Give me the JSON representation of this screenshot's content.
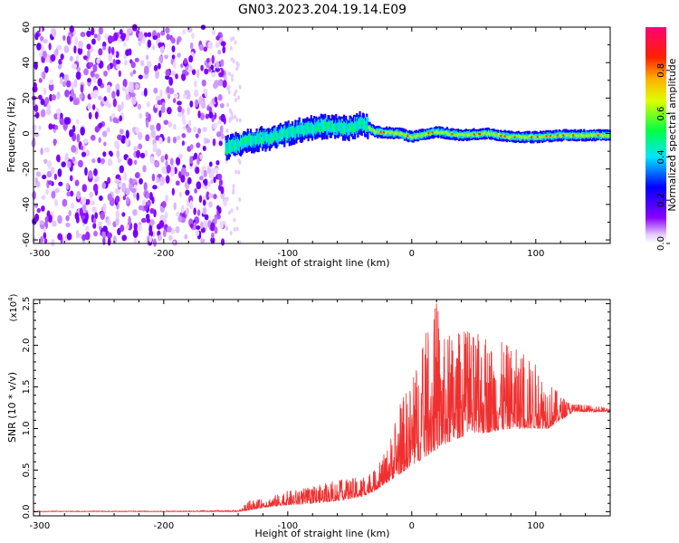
{
  "figure_title": "GN03.2023.204.19.14.E09",
  "chart_data": [
    {
      "type": "heatmap",
      "title": "GN03.2023.204.19.14.E09",
      "xlabel": "Height of straight line (km)",
      "ylabel": "Frequency (Hz)",
      "xlim": [
        -305,
        160
      ],
      "ylim": [
        -62,
        60
      ],
      "x_ticks": [
        -300,
        -200,
        -100,
        0,
        100
      ],
      "x_tick_labels": [
        "-300",
        "-200",
        "-100",
        "0",
        "100"
      ],
      "y_ticks": [
        -60,
        -40,
        -20,
        0,
        20,
        40,
        60
      ],
      "y_tick_labels": [
        "-60",
        "-40",
        "-20",
        "0",
        "20",
        "40",
        "60"
      ],
      "colorbar": {
        "label": "Normalized spectral amplitude",
        "range": [
          0,
          1
        ],
        "ticks": [
          0.0,
          0.2,
          0.4,
          0.6,
          0.8
        ],
        "tick_labels": [
          "0.0",
          "0.2",
          "0.4",
          "0.6",
          "0.8"
        ],
        "colormap": "rainbow (violet-blue-cyan-green-yellow-orange-red-magenta)"
      },
      "features": {
        "broadband_noise_region_km": [
          -305,
          -150
        ],
        "signal_band_center_hz": 0,
        "signal_band_peak_amplitude": 0.9,
        "signal_band_trace": [
          {
            "x": -150,
            "y": -8
          },
          {
            "x": -130,
            "y": -4
          },
          {
            "x": -110,
            "y": -2
          },
          {
            "x": -90,
            "y": 2
          },
          {
            "x": -70,
            "y": 4
          },
          {
            "x": -50,
            "y": 3
          },
          {
            "x": -40,
            "y": 6
          },
          {
            "x": -30,
            "y": 1
          },
          {
            "x": -10,
            "y": 0
          },
          {
            "x": 0,
            "y": -2
          },
          {
            "x": 20,
            "y": 1
          },
          {
            "x": 40,
            "y": -1
          },
          {
            "x": 60,
            "y": 0
          },
          {
            "x": 80,
            "y": -2
          },
          {
            "x": 100,
            "y": -2
          },
          {
            "x": 120,
            "y": -1
          },
          {
            "x": 160,
            "y": -1
          }
        ]
      },
      "grid": false
    },
    {
      "type": "line",
      "xlabel": "Height of straight line (km)",
      "ylabel": "SNR (10 * v/v)",
      "y_multiplier_label": "(x10",
      "y_multiplier_exp": "4",
      "y_multiplier_close": ")",
      "xlim": [
        -305,
        160
      ],
      "ylim": [
        -0.05,
        2.55
      ],
      "x_ticks": [
        -300,
        -200,
        -100,
        0,
        100
      ],
      "x_tick_labels": [
        "-300",
        "-200",
        "-100",
        "0",
        "100"
      ],
      "y_ticks": [
        0.0,
        0.5,
        1.0,
        1.5,
        2.0,
        2.5
      ],
      "y_tick_labels": [
        "0.0",
        "0.5",
        "1.0",
        "1.5",
        "2.0",
        "2.5"
      ],
      "series": [
        {
          "color": "#f03030",
          "envelope": {
            "x": [
              -305,
              -200,
              -140,
              -130,
              -120,
              -100,
              -80,
              -60,
              -40,
              -30,
              -20,
              -10,
              0,
              10,
              20,
              25,
              40,
              60,
              80,
              100,
              110,
              120,
              130,
              160
            ],
            "base": [
              0.0,
              0.0,
              0.0,
              0.02,
              0.05,
              0.08,
              0.1,
              0.13,
              0.18,
              0.25,
              0.35,
              0.45,
              0.55,
              0.65,
              0.75,
              0.8,
              0.9,
              0.95,
              1.0,
              1.0,
              1.0,
              1.1,
              1.2,
              1.2
            ],
            "peak": [
              0.01,
              0.01,
              0.02,
              0.14,
              0.15,
              0.25,
              0.3,
              0.38,
              0.42,
              0.5,
              0.75,
              1.3,
              1.6,
              2.1,
              2.55,
              2.1,
              2.2,
              2.1,
              2.0,
              1.8,
              1.6,
              1.4,
              1.3,
              1.25
            ]
          }
        }
      ],
      "grid": false
    }
  ]
}
